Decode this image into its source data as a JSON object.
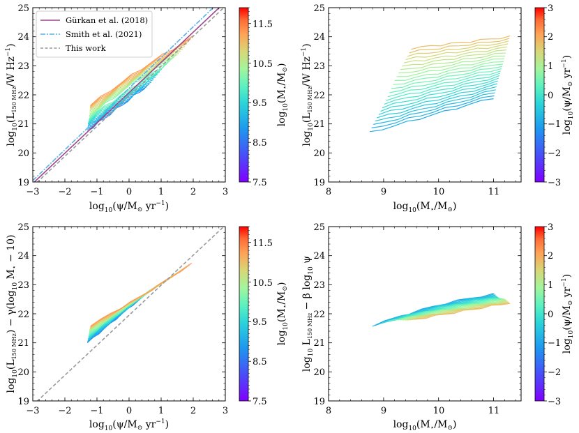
{
  "chart_data": [
    {
      "type": "line",
      "panel": "top-left",
      "xlabel": "log10(ψ/M⊙ yr⁻¹)",
      "ylabel": "log10(L150 MHz/W Hz⁻¹)",
      "xlim": [
        -3,
        3
      ],
      "ylim": [
        19,
        25
      ],
      "xticks": [
        -3,
        -2,
        -1,
        0,
        1,
        2,
        3
      ],
      "yticks": [
        19,
        20,
        21,
        22,
        23,
        24,
        25
      ],
      "legend_position": "top-left",
      "reference_lines": [
        {
          "name": "Gürkan et al. (2018)",
          "color": "#a0428c",
          "style": "solid",
          "x": [
            -3,
            3
          ],
          "y": [
            18.95,
            25.2
          ]
        },
        {
          "name": "Smith et al. (2021)",
          "color": "#5ab0e8",
          "style": "dashdot",
          "x": [
            -3,
            3
          ],
          "y": [
            19.05,
            25.4
          ]
        },
        {
          "name": "This work",
          "color": "#999999",
          "style": "dashed",
          "x": [
            -3,
            3
          ],
          "y": [
            18.85,
            25.05
          ]
        }
      ],
      "colorbar": {
        "label": "log10(M⋆/M⊙)",
        "range": [
          7.5,
          11.9
        ],
        "ticks": [
          7.5,
          8.5,
          9.5,
          10.5,
          11.5
        ]
      },
      "series_summary": "Tracks for stellar-mass bins from log10 M⋆ ≈ 8.75 to 11.3; low-mass bins (cyan) span ψ ≈ -1.3…0.5 near L ≈ 20.7…22.3, high-mass bins (orange/red) span ψ ≈ -1.2…2.0 near L ≈ 21.6…24.0"
    },
    {
      "type": "line",
      "panel": "top-right",
      "xlabel": "log10(M⋆/M⊙)",
      "ylabel": "log10(L150 MHz/W Hz⁻¹)",
      "xlim": [
        8,
        11.5
      ],
      "ylim": [
        19,
        25
      ],
      "xticks": [
        8,
        9,
        10,
        11
      ],
      "yticks": [
        19,
        20,
        21,
        22,
        23,
        24,
        25
      ],
      "colorbar": {
        "label": "log10(ψ/M⊙ yr⁻¹)",
        "range": [
          -3,
          3
        ],
        "ticks": [
          -3,
          -2,
          -1,
          0,
          1,
          2,
          3
        ]
      },
      "series_summary": "Tracks for star-formation-rate bins from ψ ≈ -0.9 (cyan, L ≈ 20.7→21.9) to ψ ≈ 1.8 (orange, L ≈ 23.6→24.0) across M⋆ ≈ 8.75–11.3"
    },
    {
      "type": "line",
      "panel": "bottom-left",
      "xlabel": "log10(ψ/M⊙ yr⁻¹)",
      "ylabel": "log10(L150 MHz) − γ(log10 M⋆ − 10)",
      "xlim": [
        -3,
        3
      ],
      "ylim": [
        19,
        25
      ],
      "xticks": [
        -3,
        -2,
        -1,
        0,
        1,
        2,
        3
      ],
      "yticks": [
        19,
        20,
        21,
        22,
        23,
        24,
        25
      ],
      "reference_lines": [
        {
          "name": "This work",
          "color": "#999999",
          "style": "dashed",
          "x": [
            -3,
            3
          ],
          "y": [
            18.85,
            25.05
          ]
        }
      ],
      "colorbar": {
        "label": "log10(M⋆/M⊙)",
        "range": [
          7.5,
          11.9
        ],
        "ticks": [
          7.5,
          8.5,
          9.5,
          10.5,
          11.5
        ]
      },
      "series_summary": "Mass-corrected tracks collapse onto a common relation from ψ ≈ -1.3 (L ≈ 21.0–21.6) to ψ ≈ 2.0 (L ≈ 23.7)"
    },
    {
      "type": "line",
      "panel": "bottom-right",
      "xlabel": "log10(M⋆/M⊙)",
      "ylabel": "log10 L150 MHz − β log10 ψ",
      "xlim": [
        8,
        11.5
      ],
      "ylim": [
        19,
        25
      ],
      "xticks": [
        8,
        9,
        10,
        11
      ],
      "yticks": [
        19,
        20,
        21,
        22,
        23,
        24,
        25
      ],
      "colorbar": {
        "label": "log10(ψ/M⊙ yr⁻¹)",
        "range": [
          -3,
          3
        ],
        "ticks": [
          -3,
          -2,
          -1,
          0,
          1,
          2,
          3
        ]
      },
      "series_summary": "SFR-corrected tracks collapse to a shallow rising band from ≈21.6 at M⋆ 8.8 to ≈22.4 at M⋆ 11.3"
    }
  ],
  "panels": [
    {
      "xlabel": {
        "main": "log",
        "sub": "10",
        "arg": "(ψ/M",
        "sun": "⊙",
        "unit": " yr",
        "sup": "−1",
        "close": ")"
      },
      "ylabel": {
        "main": "log",
        "sub": "10",
        "arg": "(L",
        "sub2": "150 MHz",
        "rest": "/W Hz",
        "sup": "−1",
        "close": ")"
      },
      "xticks": [
        "−3",
        "−2",
        "−1",
        "0",
        "1",
        "2",
        "3"
      ],
      "yticks": [
        "19",
        "20",
        "21",
        "22",
        "23",
        "24",
        "25"
      ],
      "cbar": {
        "label_main": "log",
        "label_sub": "10",
        "label_arg": "(M",
        "label_star": "⋆",
        "label_slash": "/M",
        "label_sun": "⊙",
        "label_close": ")",
        "ticks": [
          "7.5",
          "8.5",
          "9.5",
          "10.5",
          "11.5"
        ]
      }
    },
    {
      "xlabel": {
        "main": "log",
        "sub": "10",
        "arg": "(M",
        "star": "⋆",
        "slash": "/M",
        "sun": "⊙",
        "close": ")"
      },
      "ylabel": {
        "main": "log",
        "sub": "10",
        "arg": "(L",
        "sub2": "150 MHz",
        "rest": "/W Hz",
        "sup": "−1",
        "close": ")"
      },
      "xticks": [
        "8",
        "9",
        "10",
        "11"
      ],
      "yticks": [
        "19",
        "20",
        "21",
        "22",
        "23",
        "24",
        "25"
      ],
      "cbar": {
        "label_main": "log",
        "label_sub": "10",
        "label_arg": "(ψ/M",
        "label_sun": "⊙",
        "label_unit": " yr",
        "label_sup": "−1",
        "label_close": ")",
        "ticks": [
          "−3",
          "−2",
          "−1",
          "0",
          "1",
          "2",
          "3"
        ]
      }
    },
    {
      "xlabel": {
        "main": "log",
        "sub": "10",
        "arg": "(ψ/M",
        "sun": "⊙",
        "unit": " yr",
        "sup": "−1",
        "close": ")"
      },
      "ylabel": {
        "main": "log",
        "sub": "10",
        "arg": "(L",
        "sub2": "150 MHz",
        "rest": ") − γ(log",
        "sub3": "10",
        "rest2": " M",
        "star": "⋆",
        "rest3": " − 10)"
      },
      "xticks": [
        "−3",
        "−2",
        "−1",
        "0",
        "1",
        "2",
        "3"
      ],
      "yticks": [
        "19",
        "20",
        "21",
        "22",
        "23",
        "24",
        "25"
      ],
      "cbar": {
        "label_main": "log",
        "label_sub": "10",
        "label_arg": "(M",
        "label_star": "⋆",
        "label_slash": "/M",
        "label_sun": "⊙",
        "label_close": ")",
        "ticks": [
          "7.5",
          "8.5",
          "9.5",
          "10.5",
          "11.5"
        ]
      }
    },
    {
      "xlabel": {
        "main": "log",
        "sub": "10",
        "arg": "(M",
        "star": "⋆",
        "slash": "/M",
        "sun": "⊙",
        "close": ")"
      },
      "ylabel": {
        "main": "log",
        "sub": "10",
        "arg": " L",
        "sub2": "150 MHz",
        "rest": " − β log",
        "sub3": "10",
        "rest2": " ψ"
      },
      "xticks": [
        "8",
        "9",
        "10",
        "11"
      ],
      "yticks": [
        "19",
        "20",
        "21",
        "22",
        "23",
        "24",
        "25"
      ],
      "cbar": {
        "label_main": "log",
        "label_sub": "10",
        "label_arg": "(ψ/M",
        "label_sun": "⊙",
        "label_unit": " yr",
        "label_sup": "−1",
        "label_close": ")",
        "ticks": [
          "−3",
          "−2",
          "−1",
          "0",
          "1",
          "2",
          "3"
        ]
      }
    }
  ],
  "legend": {
    "items": [
      "Gürkan et al. (2018)",
      "Smith et al. (2021)",
      "This work"
    ]
  }
}
